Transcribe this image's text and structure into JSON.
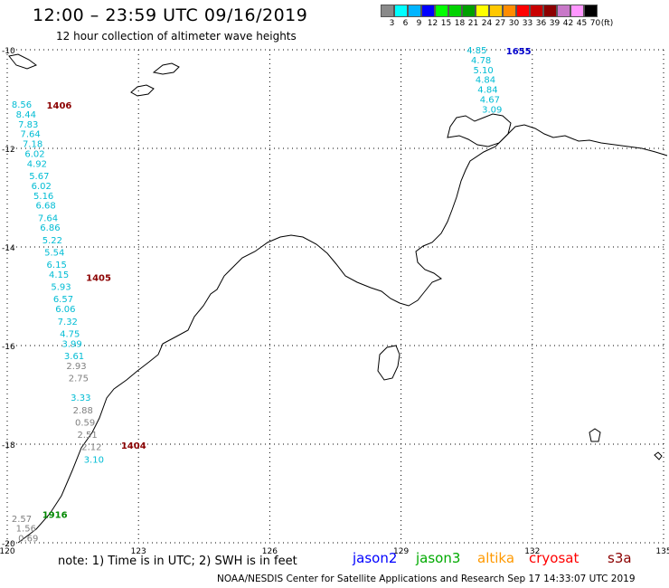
{
  "title": "12:00 – 23:59 UTC 09/16/2019",
  "subtitle": "12 hour collection of altimeter wave heights",
  "scale": {
    "unit": "(ft)",
    "bins": [
      {
        "color": "#8a8a8a",
        "label": "3"
      },
      {
        "color": "#00ffff",
        "label": "6"
      },
      {
        "color": "#00b4ff",
        "label": "9"
      },
      {
        "color": "#0000ff",
        "label": "12"
      },
      {
        "color": "#00ff00",
        "label": "15"
      },
      {
        "color": "#00d200",
        "label": "18"
      },
      {
        "color": "#00a000",
        "label": "21"
      },
      {
        "color": "#ffff00",
        "label": "24"
      },
      {
        "color": "#ffc800",
        "label": "27"
      },
      {
        "color": "#ff8c00",
        "label": "30"
      },
      {
        "color": "#ff0000",
        "label": "33"
      },
      {
        "color": "#c80000",
        "label": "36"
      },
      {
        "color": "#8c0000",
        "label": "39"
      },
      {
        "color": "#c878c8",
        "label": "42"
      },
      {
        "color": "#ff96ff",
        "label": "45"
      },
      {
        "color": "#000000",
        "label": "70"
      }
    ]
  },
  "map": {
    "lon_range": [
      120,
      135
    ],
    "lat_range": [
      -20,
      -10
    ],
    "x_ticks": [
      {
        "value": 120,
        "label": "120"
      },
      {
        "value": 123,
        "label": "123"
      },
      {
        "value": 126,
        "label": "126"
      },
      {
        "value": 129,
        "label": "129"
      },
      {
        "value": 132,
        "label": "132"
      },
      {
        "value": 135,
        "label": "135"
      }
    ],
    "y_ticks": [
      {
        "value": -10,
        "label": "-10"
      },
      {
        "value": -12,
        "label": "-12"
      },
      {
        "value": -14,
        "label": "-14"
      },
      {
        "value": -16,
        "label": "-16"
      },
      {
        "value": -18,
        "label": "-18"
      },
      {
        "value": -20,
        "label": "-20"
      }
    ],
    "grid": "dotted"
  },
  "pass_times": [
    {
      "text": "1655",
      "lon": 131.4,
      "lat": -10.0,
      "color": "#0000cc"
    },
    {
      "text": "1406",
      "lon": 120.9,
      "lat": -11.1,
      "color": "#8b0000"
    },
    {
      "text": "1405",
      "lon": 121.8,
      "lat": -14.6,
      "color": "#8b0000"
    },
    {
      "text": "1404",
      "lon": 122.6,
      "lat": -18.0,
      "color": "#8b0000"
    },
    {
      "text": "1916",
      "lon": 120.8,
      "lat": -19.4,
      "color": "#008800"
    }
  ],
  "tracks": [
    {
      "color": "#00bcd4",
      "points": [
        {
          "text": "4.85",
          "lon": 130.5,
          "lat": -10.0
        },
        {
          "text": "4.78",
          "lon": 130.6,
          "lat": -10.2
        },
        {
          "text": "5.10",
          "lon": 130.65,
          "lat": -10.4
        },
        {
          "text": "4.84",
          "lon": 130.7,
          "lat": -10.6
        },
        {
          "text": "4.84",
          "lon": 130.75,
          "lat": -10.8
        },
        {
          "text": "4.67",
          "lon": 130.8,
          "lat": -11.0
        },
        {
          "text": "3.09",
          "lon": 130.85,
          "lat": -11.2
        }
      ]
    },
    {
      "color": "#00bcd4",
      "points": [
        {
          "text": "8.56",
          "lon": 120.1,
          "lat": -11.1
        },
        {
          "text": "8.44",
          "lon": 120.2,
          "lat": -11.3
        },
        {
          "text": "7.83",
          "lon": 120.25,
          "lat": -11.5
        },
        {
          "text": "7.64",
          "lon": 120.3,
          "lat": -11.7
        },
        {
          "text": "7.18",
          "lon": 120.35,
          "lat": -11.9
        },
        {
          "text": "6.02",
          "lon": 120.4,
          "lat": -12.1
        },
        {
          "text": "4.92",
          "lon": 120.45,
          "lat": -12.3
        },
        {
          "text": "5.67",
          "lon": 120.5,
          "lat": -12.55
        },
        {
          "text": "6.02",
          "lon": 120.55,
          "lat": -12.75
        },
        {
          "text": "5.16",
          "lon": 120.6,
          "lat": -12.95
        },
        {
          "text": "6.68",
          "lon": 120.65,
          "lat": -13.15
        },
        {
          "text": "7.64",
          "lon": 120.7,
          "lat": -13.4
        },
        {
          "text": "6.86",
          "lon": 120.75,
          "lat": -13.6
        },
        {
          "text": "5.22",
          "lon": 120.8,
          "lat": -13.85
        },
        {
          "text": "5.54",
          "lon": 120.85,
          "lat": -14.1
        },
        {
          "text": "6.15",
          "lon": 120.9,
          "lat": -14.35
        },
        {
          "text": "4.15",
          "lon": 120.95,
          "lat": -14.55
        },
        {
          "text": "5.93",
          "lon": 121.0,
          "lat": -14.8
        },
        {
          "text": "6.57",
          "lon": 121.05,
          "lat": -15.05
        },
        {
          "text": "6.06",
          "lon": 121.1,
          "lat": -15.25
        },
        {
          "text": "7.32",
          "lon": 121.15,
          "lat": -15.5
        },
        {
          "text": "4.75",
          "lon": 121.2,
          "lat": -15.75
        },
        {
          "text": "3.99",
          "lon": 121.25,
          "lat": -15.95
        },
        {
          "text": "3.61",
          "lon": 121.3,
          "lat": -16.2
        },
        {
          "text": "3.33",
          "lon": 121.45,
          "lat": -17.05
        },
        {
          "text": "3.10",
          "lon": 121.75,
          "lat": -18.3
        }
      ]
    },
    {
      "color": "#808080",
      "points": [
        {
          "text": "2.93",
          "lon": 121.35,
          "lat": -16.4
        },
        {
          "text": "2.75",
          "lon": 121.4,
          "lat": -16.65
        },
        {
          "text": "2.88",
          "lon": 121.5,
          "lat": -17.3
        },
        {
          "text": "0.59",
          "lon": 121.55,
          "lat": -17.55
        },
        {
          "text": "2.51",
          "lon": 121.6,
          "lat": -17.8
        },
        {
          "text": "2.12",
          "lon": 121.7,
          "lat": -18.05
        },
        {
          "text": "2.57",
          "lon": 120.1,
          "lat": -19.5
        },
        {
          "text": "1.56",
          "lon": 120.2,
          "lat": -19.7
        },
        {
          "text": "0.69",
          "lon": 120.25,
          "lat": -19.9
        }
      ]
    }
  ],
  "note": "note:  1) Time is in UTC;  2) SWH is in feet",
  "legend": [
    {
      "text": "jason2",
      "color": "#0000ff"
    },
    {
      "text": "jason3",
      "color": "#00aa00"
    },
    {
      "text": "altika",
      "color": "#ff9900"
    },
    {
      "text": "cryosat",
      "color": "#ff0000"
    },
    {
      "text": "s3a",
      "color": "#8b0000"
    }
  ],
  "footer": "NOAA/NESDIS Center for Satellite Applications and Research    Sep 17 14:33:07 UTC 2019"
}
